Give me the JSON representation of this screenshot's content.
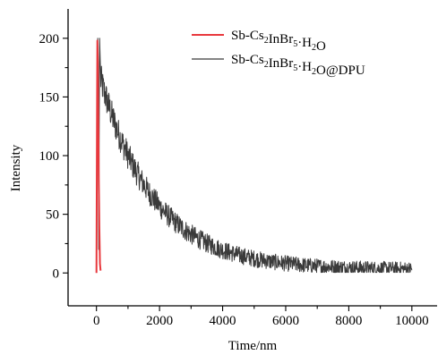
{
  "chart_data": {
    "type": "line",
    "title": "",
    "xlabel": "Time/nm",
    "ylabel": "Intensity",
    "xlim": [
      -900,
      10800
    ],
    "ylim": [
      -28,
      225
    ],
    "xticks": [
      0,
      2000,
      4000,
      6000,
      8000,
      10000
    ],
    "xtick_labels": [
      "0",
      "2000",
      "4000",
      "6000",
      "8000",
      "10000"
    ],
    "yticks": [
      0,
      50,
      100,
      150,
      200
    ],
    "ytick_labels": [
      "0",
      "50",
      "100",
      "150",
      "200"
    ],
    "grid": false,
    "legend_position": "top-right",
    "series": [
      {
        "name": "Sb-Cs2InBr5·H2O",
        "legend": {
          "pre": "Sb-Cs",
          "sub1": "2",
          "mid1": "InBr",
          "sub2": "5",
          "mid2": "·H",
          "sub3": "2",
          "post": "O"
        },
        "color": "#e8383d",
        "x": [
          0,
          20,
          30,
          45,
          60,
          75,
          90,
          110,
          130
        ],
        "y": [
          0,
          150,
          198,
          180,
          130,
          80,
          40,
          8,
          2
        ]
      },
      {
        "name": "Sb-Cs2InBr5·H2O@DPU",
        "legend": {
          "pre": "Sb-Cs",
          "sub1": "2",
          "mid1": "InBr",
          "sub2": "5",
          "mid2": "·H",
          "sub3": "2",
          "post": "O@DPU"
        },
        "color": "#3a3a3a",
        "decay": {
          "x_start": 0,
          "x_end": 10000,
          "peak_x": 100,
          "peak_y": 200,
          "amplitude": 165,
          "tau": 1700,
          "baseline": 3,
          "noise": 12
        }
      }
    ]
  }
}
